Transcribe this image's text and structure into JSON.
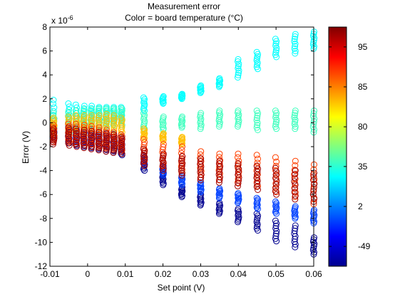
{
  "chart_data": {
    "type": "scatter",
    "title": "Measurement error",
    "subtitle": "Color = board temperature (°C)",
    "xlabel": "Set point (V)",
    "ylabel": "Error (V)",
    "y_exponent_label": "x 10",
    "y_exponent_power": "-6",
    "xlim": [
      -0.01,
      0.06
    ],
    "ylim": [
      -12,
      8
    ],
    "x_ticks": [
      -0.01,
      0,
      0.01,
      0.02,
      0.03,
      0.04,
      0.05,
      0.06
    ],
    "x_tick_labels": [
      "-0.01",
      "0",
      "0.01",
      "0.02",
      "0.03",
      "0.04",
      "0.05",
      "0.06"
    ],
    "y_ticks": [
      -12,
      -10,
      -8,
      -6,
      -4,
      -2,
      0,
      2,
      4,
      6,
      8
    ],
    "y_tick_labels": [
      "-12",
      "-10",
      "-8",
      "-6",
      "-4",
      "-2",
      "0",
      "2",
      "4",
      "6",
      "8"
    ],
    "marker": "open-circle",
    "grid": false,
    "colormap": "jet",
    "colorbar": {
      "tick_labels": [
        "95",
        "85",
        "80",
        "35",
        "2",
        "-49"
      ],
      "tick_fractions": [
        0.917,
        0.75,
        0.583,
        0.417,
        0.25,
        0.083
      ]
    },
    "series": [
      {
        "temp_color": "#00008f",
        "x": [
          -0.009,
          -0.005,
          -0.003,
          -0.001,
          0.001,
          0.003,
          0.005,
          0.007,
          0.009,
          0.015,
          0.02,
          0.025,
          0.03,
          0.035,
          0.04,
          0.045,
          0.05,
          0.055,
          0.06
        ],
        "y_min": [
          -1.6,
          -1.7,
          -1.9,
          -2.0,
          -2.1,
          -2.2,
          -2.4,
          -2.5,
          -2.7,
          -4.0,
          -5.2,
          -6.2,
          -6.9,
          -7.6,
          -8.3,
          -9.0,
          -9.9,
          -10.4,
          -11.0
        ],
        "y_max": [
          -0.4,
          -0.5,
          -0.6,
          -0.8,
          -0.9,
          -1.1,
          -1.3,
          -1.5,
          -1.7,
          -3.0,
          -4.2,
          -5.4,
          -6.0,
          -6.7,
          -7.2,
          -7.6,
          -8.2,
          -8.6,
          -9.6
        ]
      },
      {
        "temp_color": "#0040ff",
        "x": [
          -0.009,
          -0.005,
          -0.003,
          -0.001,
          0.001,
          0.003,
          0.005,
          0.007,
          0.009,
          0.015,
          0.02,
          0.025,
          0.03,
          0.035,
          0.04,
          0.045,
          0.05,
          0.055,
          0.06
        ],
        "y_min": [
          -1.2,
          -1.3,
          -1.5,
          -1.6,
          -1.7,
          -1.8,
          -1.9,
          -2.0,
          -2.2,
          -3.4,
          -4.4,
          -5.2,
          -5.8,
          -6.3,
          -6.7,
          -7.2,
          -7.6,
          -8.0,
          -8.4
        ],
        "y_max": [
          -0.2,
          -0.3,
          -0.4,
          -0.5,
          -0.6,
          -0.7,
          -0.8,
          -0.9,
          -1.0,
          -2.8,
          -3.6,
          -4.4,
          -5.0,
          -5.5,
          -5.9,
          -6.3,
          -6.6,
          -7.0,
          -7.3
        ]
      },
      {
        "temp_color": "#00ffff",
        "x": [
          -0.009,
          -0.005,
          -0.003,
          -0.001,
          0.001,
          0.003,
          0.005,
          0.007,
          0.009,
          0.015,
          0.02,
          0.025,
          0.03,
          0.035,
          0.04,
          0.045,
          0.05,
          0.055,
          0.06
        ],
        "y_min": [
          -0.6,
          -0.5,
          -0.4,
          -0.3,
          -0.2,
          -0.1,
          0.0,
          0.1,
          0.2,
          1.0,
          1.6,
          2.0,
          2.5,
          3.0,
          3.8,
          4.5,
          5.5,
          5.8,
          6.2
        ],
        "y_max": [
          1.9,
          1.6,
          1.5,
          1.4,
          1.4,
          1.3,
          1.3,
          1.3,
          1.3,
          2.1,
          2.2,
          2.4,
          3.1,
          3.7,
          5.3,
          5.9,
          7.0,
          7.4,
          7.6
        ]
      },
      {
        "temp_color": "#40ffbf",
        "x": [
          -0.009,
          -0.005,
          -0.003,
          -0.001,
          0.001,
          0.003,
          0.005,
          0.007,
          0.009,
          0.015,
          0.02,
          0.025,
          0.03,
          0.035,
          0.04,
          0.045,
          0.05,
          0.055,
          0.06
        ],
        "y_min": [
          -1.0,
          -0.9,
          -0.8,
          -0.6,
          -0.5,
          -0.4,
          -0.3,
          -0.2,
          -0.2,
          -0.5,
          -0.6,
          -0.4,
          -0.5,
          -0.3,
          -0.3,
          -0.6,
          -0.5,
          -0.5,
          -0.8
        ],
        "y_max": [
          0.8,
          0.9,
          1.0,
          1.1,
          1.1,
          1.2,
          1.2,
          1.2,
          1.2,
          0.8,
          0.5,
          0.5,
          0.8,
          1.0,
          1.0,
          1.0,
          1.0,
          1.0,
          1.0
        ]
      },
      {
        "temp_color": "#ffbf00",
        "x": [
          -0.009,
          -0.005,
          -0.003,
          -0.001,
          0.001,
          0.003,
          0.005,
          0.007,
          0.009,
          0.015,
          0.02,
          0.025
        ],
        "y_min": [
          -0.6,
          -0.7,
          -0.7,
          -0.7,
          -0.7,
          -0.8,
          -0.8,
          -0.8,
          -0.8,
          -1.3,
          -1.5,
          -1.8
        ],
        "y_max": [
          0.4,
          0.5,
          0.6,
          0.6,
          0.6,
          0.6,
          0.7,
          0.6,
          0.4,
          -0.5,
          -0.9,
          -1.2
        ]
      },
      {
        "temp_color": "#ff4000",
        "x": [
          -0.009,
          -0.005,
          -0.003,
          -0.001,
          0.001,
          0.003,
          0.005,
          0.007,
          0.009,
          0.015,
          0.02,
          0.025,
          0.03,
          0.035,
          0.04,
          0.045,
          0.05,
          0.055,
          0.06
        ],
        "y_min": [
          -1.6,
          -1.6,
          -1.8,
          -1.9,
          -2.0,
          -2.0,
          -2.1,
          -2.2,
          -2.3,
          -3.2,
          -3.6,
          -4.2,
          -4.6,
          -4.8,
          -5.0,
          -5.3,
          -5.8,
          -6.2,
          -6.8
        ],
        "y_max": [
          -0.2,
          -0.1,
          -0.1,
          -0.2,
          -0.3,
          -0.4,
          -0.6,
          -0.8,
          -1.0,
          -1.4,
          -1.8,
          -2.0,
          -2.4,
          -2.6,
          -2.6,
          -2.7,
          -2.9,
          -3.2,
          -3.5
        ]
      },
      {
        "temp_color": "#a00000",
        "x": [
          -0.009,
          -0.005,
          -0.003,
          -0.001,
          0.001,
          0.003,
          0.005,
          0.007,
          0.009,
          0.015,
          0.02,
          0.025,
          0.03,
          0.035,
          0.04,
          0.045,
          0.05,
          0.055,
          0.06
        ],
        "y_min": [
          -1.8,
          -1.9,
          -2.0,
          -2.1,
          -2.2,
          -2.3,
          -2.4,
          -2.5,
          -2.6,
          -3.6,
          -4.0,
          -4.4,
          -4.8,
          -5.0,
          -5.3,
          -5.6,
          -6.0,
          -6.4,
          -6.6
        ],
        "y_max": [
          -0.5,
          -0.4,
          -0.5,
          -0.6,
          -0.7,
          -0.8,
          -0.9,
          -1.0,
          -1.2,
          -2.2,
          -2.6,
          -2.8,
          -3.0,
          -3.2,
          -3.4,
          -3.6,
          -3.8,
          -4.0,
          -4.2
        ]
      }
    ]
  }
}
